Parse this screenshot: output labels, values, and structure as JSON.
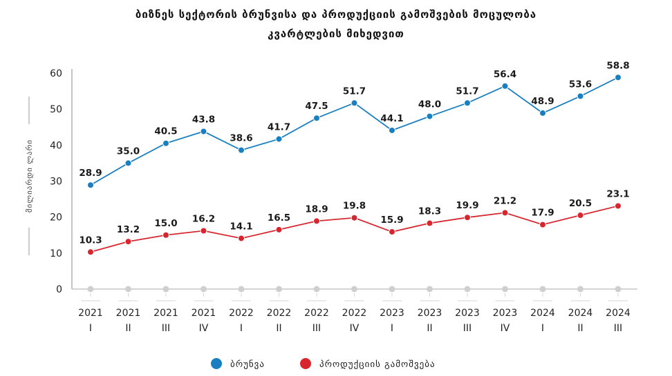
{
  "chart_data": {
    "type": "line",
    "title_line1": "ბიზნეს სექტორის ბრუნვისა და პროდუქციის გამოშვების მოცულობა",
    "title_line2": "კვარტლების მიხედვით",
    "ylabel": "მილიარდი ლარი",
    "ylim": [
      0,
      60
    ],
    "yticks": [
      0,
      10,
      20,
      30,
      40,
      50,
      60
    ],
    "grid": false,
    "legend_position": "bottom-center",
    "categories": [
      {
        "year": "2021",
        "quarter": "I"
      },
      {
        "year": "2021",
        "quarter": "II"
      },
      {
        "year": "2021",
        "quarter": "III"
      },
      {
        "year": "2021",
        "quarter": "IV"
      },
      {
        "year": "2022",
        "quarter": "I"
      },
      {
        "year": "2022",
        "quarter": "II"
      },
      {
        "year": "2022",
        "quarter": "III"
      },
      {
        "year": "2022",
        "quarter": "IV"
      },
      {
        "year": "2023",
        "quarter": "I"
      },
      {
        "year": "2023",
        "quarter": "II"
      },
      {
        "year": "2023",
        "quarter": "III"
      },
      {
        "year": "2023",
        "quarter": "IV"
      },
      {
        "year": "2024",
        "quarter": "I"
      },
      {
        "year": "2024",
        "quarter": "II"
      },
      {
        "year": "2024",
        "quarter": "III"
      }
    ],
    "series": [
      {
        "name": "ბრუნვა",
        "color": "#1a7fc1",
        "values": [
          28.9,
          35.0,
          40.5,
          43.8,
          38.6,
          41.7,
          47.5,
          51.7,
          44.1,
          48.0,
          51.7,
          56.4,
          48.9,
          53.6,
          58.8
        ],
        "labels": [
          "28.9",
          "35.0",
          "40.5",
          "43.8",
          "38.6",
          "41.7",
          "47.5",
          "51.7",
          "44.1",
          "48.0",
          "51.7",
          "56.4",
          "48.9",
          "53.6",
          "58.8"
        ]
      },
      {
        "name": "პროდუქციის გამოშვება",
        "color": "#d7262e",
        "values": [
          10.3,
          13.2,
          15.0,
          16.2,
          14.1,
          16.5,
          18.9,
          19.8,
          15.9,
          18.3,
          19.9,
          21.2,
          17.9,
          20.5,
          23.1
        ],
        "labels": [
          "10.3",
          "13.2",
          "15.0",
          "16.2",
          "14.1",
          "16.5",
          "18.9",
          "19.8",
          "15.9",
          "18.3",
          "19.9",
          "21.2",
          "17.9",
          "20.5",
          "23.1"
        ]
      }
    ]
  }
}
